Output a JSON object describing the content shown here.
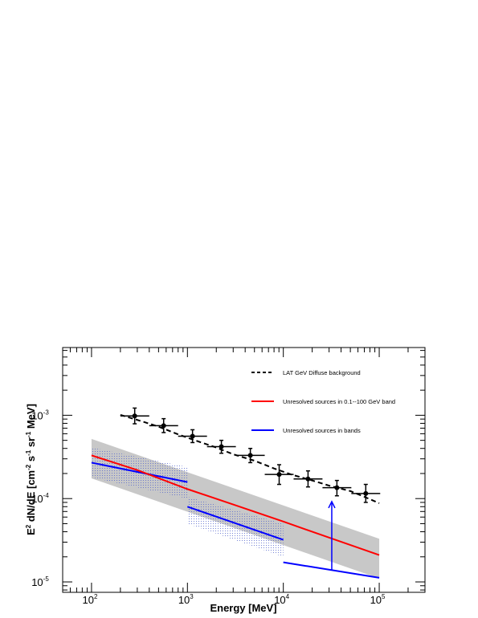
{
  "chart_data": {
    "type": "line",
    "x_scale": "log",
    "y_scale": "log",
    "xlim": [
      50,
      300000
    ],
    "ylim": [
      7.5e-06,
      0.0065
    ],
    "xlabel": "Energy [MeV]",
    "ylabel_parts": {
      "prefix": "E",
      "sup1": "2",
      "mid": " dN/dE [cm",
      "sup2": "-2",
      "mid2": " s",
      "sup3": "-1",
      "mid3": " sr",
      "sup4": "-1",
      "suffix": " MeV]"
    },
    "x_ticks": [
      {
        "base": "10",
        "exp": "2",
        "value": 100
      },
      {
        "base": "10",
        "exp": "3",
        "value": 1000
      },
      {
        "base": "10",
        "exp": "4",
        "value": 10000
      },
      {
        "base": "10",
        "exp": "5",
        "value": 100000
      }
    ],
    "y_ticks": [
      {
        "base": "10",
        "exp": "-5",
        "value": 1e-05
      },
      {
        "base": "10",
        "exp": "-4",
        "value": 0.0001
      },
      {
        "base": "10",
        "exp": "-3",
        "value": 0.001
      }
    ],
    "legend": {
      "placement": "top-right",
      "entries": [
        {
          "label": "LAT GeV Diffuse background",
          "color": "#000000",
          "style": "dashed"
        },
        {
          "label": "Unresolved sources in 0.1--100 GeV band",
          "color": "#ff0000",
          "style": "solid"
        },
        {
          "label": "Unresolved sources in bands",
          "color": "#0000ff",
          "style": "solid"
        }
      ]
    },
    "colors": {
      "band": "#c8c8c8",
      "red": "#ff0000",
      "blue": "#0000ff",
      "black": "#000000",
      "hatch": "#5566cc"
    },
    "series": [
      {
        "name": "LAT GeV Diffuse background",
        "style": "dashed",
        "color": "#000000",
        "x": [
          200,
          300,
          500,
          800,
          1200,
          2000,
          3000,
          5000,
          8000,
          12000,
          20000,
          30000,
          50000,
          70000,
          100000
        ],
        "y": [
          0.00101,
          0.00088,
          0.00073,
          0.00059,
          0.0005,
          0.00041,
          0.00034,
          0.000285,
          0.00023,
          0.000195,
          0.000165,
          0.000143,
          0.000123,
          0.000105,
          8.8e-05
        ]
      },
      {
        "name": "Unresolved sources in 0.1--100 GeV band",
        "style": "solid",
        "color": "#ff0000",
        "x": [
          100,
          300,
          1000,
          3000,
          10000,
          30000,
          100000
        ],
        "y": [
          0.00033,
          0.00022,
          0.00013,
          8.5e-05,
          5.3e-05,
          3.4e-05,
          2.1e-05
        ]
      }
    ],
    "data_points": {
      "name": "measurements",
      "points": [
        {
          "x": 282,
          "y": 0.00098,
          "xlo": 200,
          "xhi": 400,
          "ylo": 0.00079,
          "yhi": 0.00122
        },
        {
          "x": 565,
          "y": 0.00075,
          "xlo": 400,
          "xhi": 800,
          "ylo": 0.00062,
          "yhi": 0.00091
        },
        {
          "x": 1130,
          "y": 0.00056,
          "xlo": 800,
          "xhi": 1600,
          "ylo": 0.00047,
          "yhi": 0.00067
        },
        {
          "x": 2260,
          "y": 0.00042,
          "xlo": 1600,
          "xhi": 3200,
          "ylo": 0.00035,
          "yhi": 0.0005
        },
        {
          "x": 4530,
          "y": 0.00033,
          "xlo": 3200,
          "xhi": 6400,
          "ylo": 0.00027,
          "yhi": 0.0004
        },
        {
          "x": 9050,
          "y": 0.000195,
          "xlo": 6400,
          "xhi": 12800,
          "ylo": 0.000148,
          "yhi": 0.000255
        },
        {
          "x": 18100,
          "y": 0.000172,
          "xlo": 12800,
          "xhi": 25600,
          "ylo": 0.000138,
          "yhi": 0.000215
        },
        {
          "x": 36200,
          "y": 0.000135,
          "xlo": 25600,
          "xhi": 51200,
          "ylo": 0.000108,
          "yhi": 0.000165
        },
        {
          "x": 72400,
          "y": 0.000115,
          "xlo": 51200,
          "xhi": 102400,
          "ylo": 9e-05,
          "yhi": 0.000148
        }
      ]
    },
    "gray_band": {
      "x": [
        100,
        100000
      ],
      "upper": [
        0.00052,
        3.3e-05
      ],
      "lower": [
        0.000175,
        1.1e-05
      ]
    },
    "blue_segments": [
      {
        "x": [
          100,
          1000
        ],
        "y": [
          0.00027,
          0.000158
        ],
        "hatch_upper": [
          0.00041,
          0.00024
        ],
        "hatch_lower": [
          0.00018,
          0.0001
        ]
      },
      {
        "x": [
          1000,
          10000
        ],
        "y": [
          8e-05,
          3.2e-05
        ],
        "hatch_upper": [
          0.000105,
          5e-05
        ],
        "hatch_lower": [
          5e-05,
          2e-05
        ]
      },
      {
        "x": [
          10000,
          100000
        ],
        "y": [
          1.72e-05,
          1.12e-05
        ]
      }
    ],
    "arrow": {
      "x": 32000,
      "y_start": 1.38e-05,
      "y_end": 9.2e-05,
      "color": "#0000ff"
    }
  }
}
